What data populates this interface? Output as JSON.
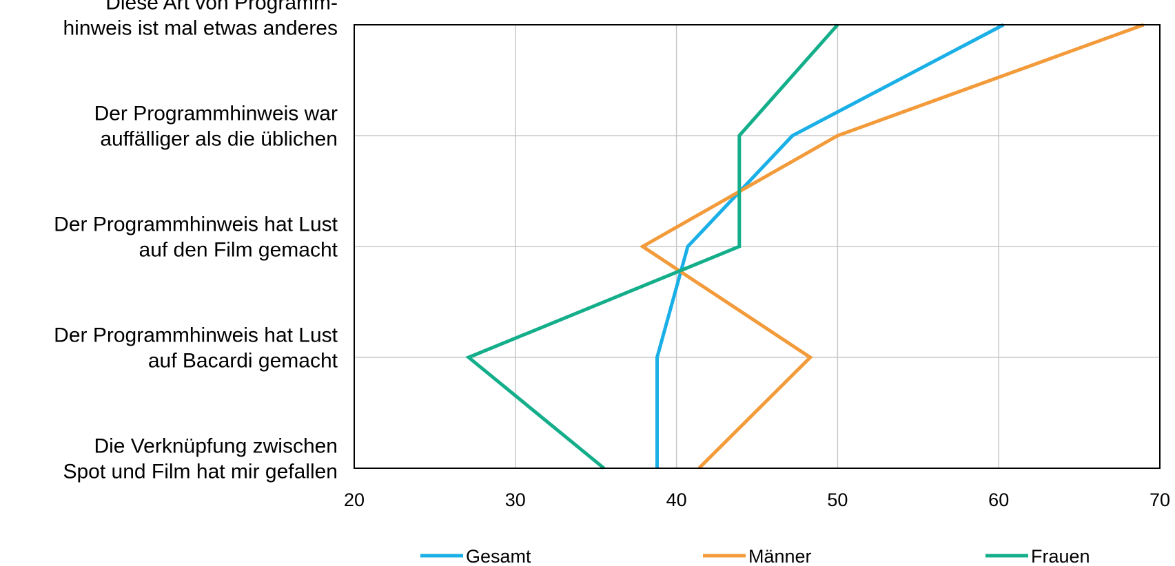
{
  "chart_data": {
    "type": "line",
    "orientation": "horizontal",
    "categories": [
      [
        "Diese Art von Programm-",
        "hinweis ist mal etwas anderes"
      ],
      [
        "Der Programmhinweis war",
        "auffälliger als die üblichen"
      ],
      [
        "Der Programmhinweis hat Lust",
        "auf den Film gemacht"
      ],
      [
        "Der Programmhinweis hat Lust",
        "auf Bacardi gemacht"
      ],
      [
        "Die Verknüpfung zwischen",
        "Spot und Film hat mir gefallen"
      ]
    ],
    "series": [
      {
        "name": "Gesamt",
        "color": "#1AAFE6",
        "values": [
          60.3,
          47.2,
          40.7,
          38.8,
          38.8
        ]
      },
      {
        "name": "Männer",
        "color": "#F39B3A",
        "values": [
          69.0,
          50.0,
          37.9,
          48.3,
          41.4
        ]
      },
      {
        "name": "Frauen",
        "color": "#14AE8A",
        "values": [
          50.0,
          43.9,
          43.9,
          27.1,
          35.5
        ]
      }
    ],
    "xlim": [
      20,
      70
    ],
    "xticks": [
      20,
      30,
      40,
      50,
      60,
      70
    ],
    "grid": true,
    "legend_position": "bottom",
    "title": "",
    "xlabel": "",
    "ylabel": ""
  }
}
